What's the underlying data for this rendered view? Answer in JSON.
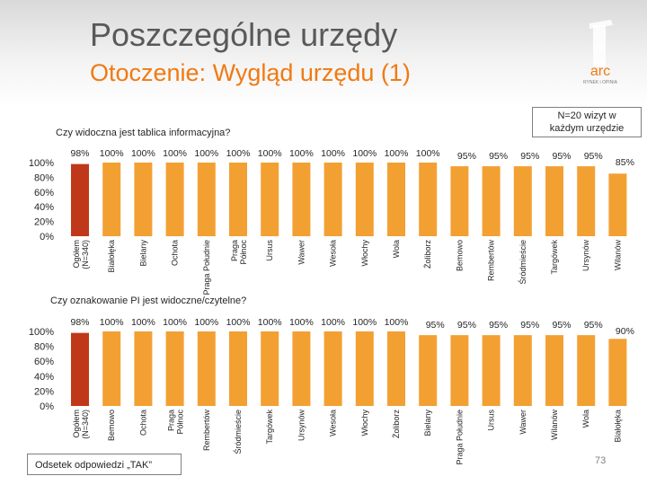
{
  "header": {
    "title": "Poszczególne urzędy",
    "subtitle": "Otoczenie: Wygląd urzędu (1)"
  },
  "logo": {
    "text": "arc",
    "subtext": "RYNEK i OPINIA"
  },
  "note": {
    "line1": "N=20 wizyt w",
    "line2": "każdym urzędzie"
  },
  "legend_label": "Odsetek odpowiedzi „TAK”",
  "page_number": "73",
  "colors": {
    "total_bar": "#c0381a",
    "bars": "#f3a033",
    "accent": "#f07a12"
  },
  "chart_data": [
    {
      "type": "bar",
      "title": "Czy widoczna jest tablica informacyjna?",
      "yticks": [
        "100%",
        "80%",
        "60%",
        "40%",
        "20%",
        "0%"
      ],
      "ylim": [
        0,
        100
      ],
      "categories": [
        "Ogółem (N=340)",
        "Białołęka",
        "Bielany",
        "Ochota",
        "Praga Południe",
        "Praga Północ",
        "Ursus",
        "Wawer",
        "Wesoła",
        "Włochy",
        "Wola",
        "Żoliborz",
        "Bemowo",
        "Rembertów",
        "Śródmieście",
        "Targówek",
        "Ursynów",
        "Wilanów"
      ],
      "values": [
        98,
        100,
        100,
        100,
        100,
        100,
        100,
        100,
        100,
        100,
        100,
        100,
        95,
        95,
        95,
        95,
        95,
        85
      ],
      "labels": [
        "98%",
        "100%",
        "100%",
        "100%",
        "100%",
        "100%",
        "100%",
        "100%",
        "100%",
        "100%",
        "100%",
        "100%",
        "95%",
        "95%",
        "95%",
        "95%",
        "95%",
        "85%"
      ]
    },
    {
      "type": "bar",
      "title": "Czy oznakowanie PI jest widoczne/czytelne?",
      "yticks": [
        "100%",
        "80%",
        "60%",
        "40%",
        "20%",
        "0%"
      ],
      "ylim": [
        0,
        100
      ],
      "categories": [
        "Ogółem (N=340)",
        "Bemowo",
        "Ochota",
        "Praga Północ",
        "Rembertów",
        "Śródmieście",
        "Targówek",
        "Ursynów",
        "Wesoła",
        "Włochy",
        "Żoliborz",
        "Bielany",
        "Praga Południe",
        "Ursus",
        "Wawer",
        "Wilanów",
        "Wola",
        "Białołęka"
      ],
      "values": [
        98,
        100,
        100,
        100,
        100,
        100,
        100,
        100,
        100,
        100,
        100,
        95,
        95,
        95,
        95,
        95,
        95,
        90
      ],
      "labels": [
        "98%",
        "100%",
        "100%",
        "100%",
        "100%",
        "100%",
        "100%",
        "100%",
        "100%",
        "100%",
        "100%",
        "95%",
        "95%",
        "95%",
        "95%",
        "95%",
        "95%",
        "90%"
      ]
    }
  ]
}
